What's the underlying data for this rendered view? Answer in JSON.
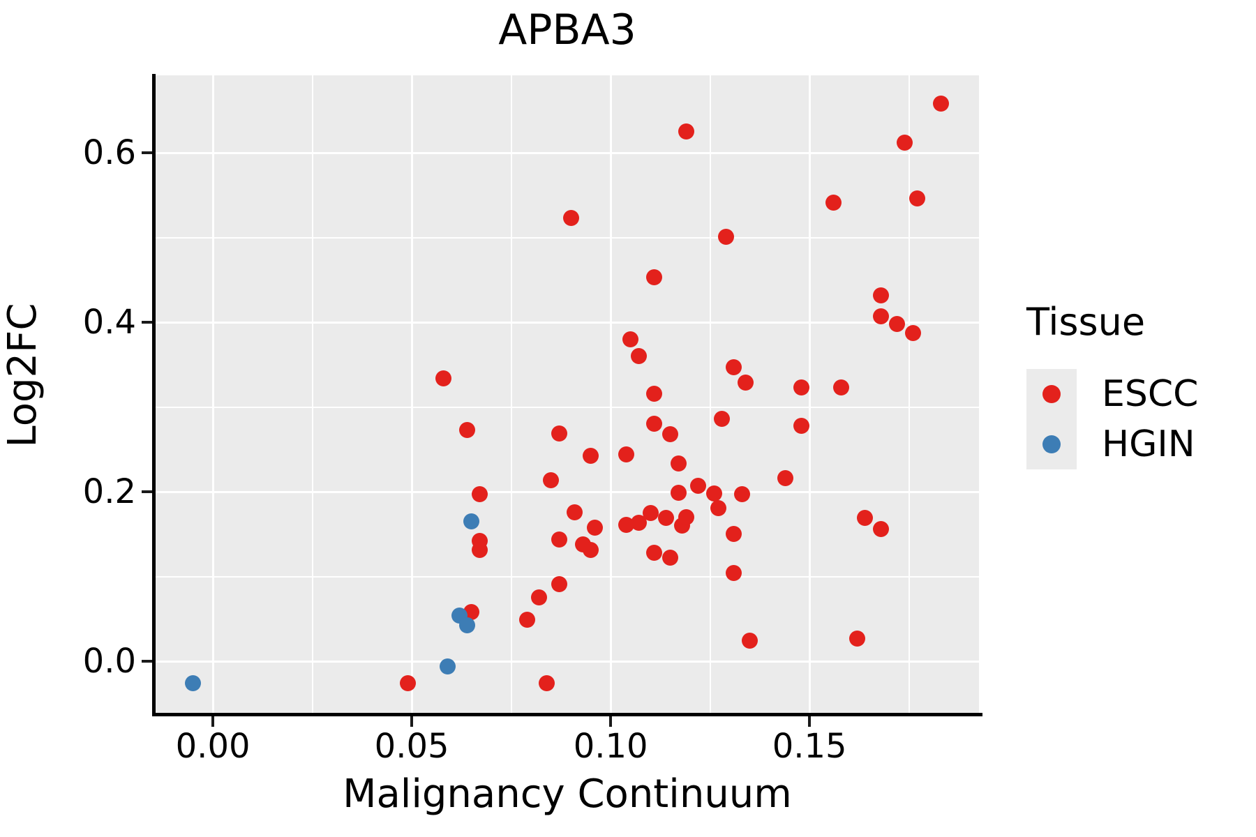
{
  "title": "APBA3",
  "x_axis": {
    "label": "Malignancy Continuum",
    "tick_labels": [
      "0.00",
      "0.05",
      "0.10",
      "0.15"
    ],
    "tick_values": [
      0.0,
      0.05,
      0.1,
      0.15
    ],
    "minor_values": [
      0.025,
      0.075,
      0.125,
      0.175
    ]
  },
  "y_axis": {
    "label": "Log2FC",
    "tick_labels": [
      "0.0",
      "0.2",
      "0.4",
      "0.6"
    ],
    "tick_values": [
      0.0,
      0.2,
      0.4,
      0.6
    ],
    "minor_values": [
      0.1,
      0.3,
      0.5
    ]
  },
  "legend": {
    "title": "Tissue",
    "items": [
      {
        "label": "ESCC",
        "color": "#E3211C"
      },
      {
        "label": "HGIN",
        "color": "#3D7DB5"
      }
    ]
  },
  "colors": {
    "panel_background": "#EBEBEB",
    "gridline": "#FFFFFF",
    "axis_line": "#000000",
    "escc": "#E3211C",
    "hgin": "#3D7DB5"
  },
  "chart_data": {
    "type": "scatter",
    "title": "APBA3",
    "xlabel": "Malignancy Continuum",
    "ylabel": "Log2FC",
    "x_range": [
      -0.0144,
      0.1926
    ],
    "y_range": [
      -0.0609,
      0.6914
    ],
    "grid": "on",
    "legend_position": "right",
    "series": [
      {
        "name": "ESCC",
        "color": "#E3211C",
        "points": [
          [
            0.09,
            0.523
          ],
          [
            0.111,
            0.453
          ],
          [
            0.119,
            0.625
          ],
          [
            0.183,
            0.658
          ],
          [
            0.174,
            0.612
          ],
          [
            0.156,
            0.541
          ],
          [
            0.177,
            0.546
          ],
          [
            0.129,
            0.501
          ],
          [
            0.058,
            0.334
          ],
          [
            0.105,
            0.38
          ],
          [
            0.107,
            0.36
          ],
          [
            0.111,
            0.316
          ],
          [
            0.064,
            0.273
          ],
          [
            0.087,
            0.269
          ],
          [
            0.095,
            0.242
          ],
          [
            0.104,
            0.244
          ],
          [
            0.085,
            0.214
          ],
          [
            0.067,
            0.197
          ],
          [
            0.111,
            0.28
          ],
          [
            0.115,
            0.268
          ],
          [
            0.168,
            0.432
          ],
          [
            0.168,
            0.407
          ],
          [
            0.172,
            0.398
          ],
          [
            0.176,
            0.387
          ],
          [
            0.131,
            0.347
          ],
          [
            0.134,
            0.329
          ],
          [
            0.148,
            0.323
          ],
          [
            0.158,
            0.323
          ],
          [
            0.128,
            0.286
          ],
          [
            0.148,
            0.278
          ],
          [
            0.144,
            0.216
          ],
          [
            0.117,
            0.233
          ],
          [
            0.122,
            0.207
          ],
          [
            0.117,
            0.199
          ],
          [
            0.126,
            0.198
          ],
          [
            0.133,
            0.197
          ],
          [
            0.067,
            0.142
          ],
          [
            0.067,
            0.131
          ],
          [
            0.091,
            0.176
          ],
          [
            0.087,
            0.144
          ],
          [
            0.096,
            0.158
          ],
          [
            0.093,
            0.138
          ],
          [
            0.095,
            0.131
          ],
          [
            0.107,
            0.163
          ],
          [
            0.11,
            0.175
          ],
          [
            0.114,
            0.169
          ],
          [
            0.111,
            0.128
          ],
          [
            0.115,
            0.122
          ],
          [
            0.065,
            0.058
          ],
          [
            0.082,
            0.075
          ],
          [
            0.087,
            0.091
          ],
          [
            0.079,
            0.049
          ],
          [
            0.049,
            -0.026
          ],
          [
            0.084,
            -0.026
          ],
          [
            0.104,
            0.161
          ],
          [
            0.118,
            0.16
          ],
          [
            0.119,
            0.17
          ],
          [
            0.127,
            0.181
          ],
          [
            0.131,
            0.15
          ],
          [
            0.131,
            0.104
          ],
          [
            0.164,
            0.169
          ],
          [
            0.168,
            0.156
          ],
          [
            0.135,
            0.024
          ],
          [
            0.162,
            0.027
          ]
        ]
      },
      {
        "name": "HGIN",
        "color": "#3D7DB5",
        "points": [
          [
            -0.005,
            -0.026
          ],
          [
            0.059,
            -0.006
          ],
          [
            0.062,
            0.054
          ],
          [
            0.064,
            0.042
          ],
          [
            0.065,
            0.165
          ]
        ]
      }
    ]
  }
}
